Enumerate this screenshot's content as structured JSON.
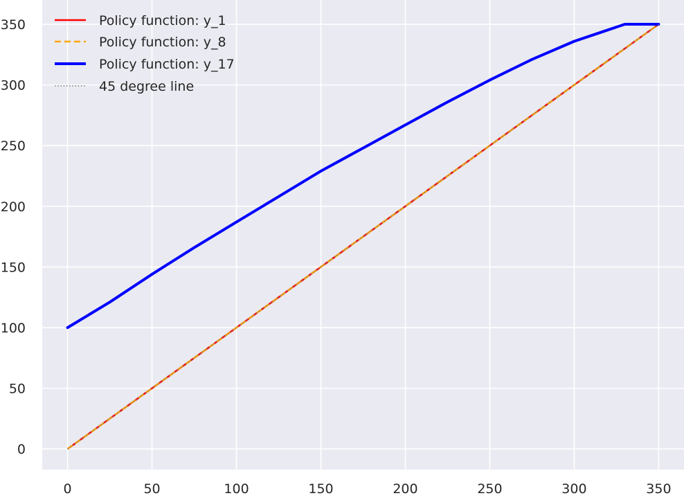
{
  "chart_data": {
    "type": "line",
    "title": "",
    "xlabel": "",
    "ylabel": "",
    "xlim": [
      -15,
      365
    ],
    "ylim": [
      -17,
      370
    ],
    "xticks": [
      0,
      50,
      100,
      150,
      200,
      250,
      300,
      350
    ],
    "yticks": [
      0,
      50,
      100,
      150,
      200,
      250,
      300,
      350
    ],
    "grid": true,
    "background": "#eaeaf2",
    "grid_color": "#ffffff",
    "legend_position": "top-left",
    "series": [
      {
        "name": "Policy function: y_1",
        "color": "#ff0000",
        "style": "solid",
        "x": [
          0,
          350
        ],
        "y": [
          0,
          350
        ]
      },
      {
        "name": "Policy function: y_8",
        "color": "#ffa500",
        "style": "dashed",
        "x": [
          0,
          350
        ],
        "y": [
          0,
          350
        ]
      },
      {
        "name": "Policy function: y_17",
        "color": "#0000ff",
        "style": "solid-thick",
        "x": [
          0,
          25,
          50,
          75,
          100,
          125,
          150,
          175,
          200,
          225,
          250,
          275,
          300,
          315,
          330,
          350
        ],
        "y": [
          100,
          121,
          144,
          166,
          187,
          208,
          229,
          248,
          267,
          286,
          304,
          321,
          336,
          343,
          350,
          350
        ]
      },
      {
        "name": "45 degree line",
        "color": "#808080",
        "style": "dotted",
        "x": [
          0,
          350
        ],
        "y": [
          0,
          350
        ]
      }
    ]
  }
}
